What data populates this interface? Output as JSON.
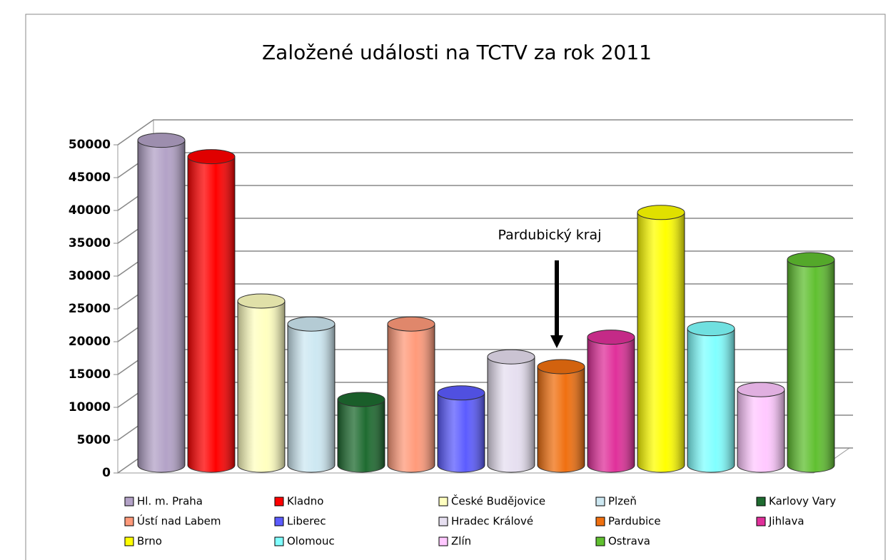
{
  "chart_data": {
    "type": "cylinder",
    "title": "Založené události na TCTV za rok 2011",
    "categories": [
      "Hl. m. Praha",
      "Kladno",
      "České Budějovice",
      "Plzeň",
      "Karlovy Vary",
      "Ústí nad Labem",
      "Liberec",
      "Hradec Králové",
      "Pardubice",
      "Jihlava",
      "Brno",
      "Olomouc",
      "Zlín",
      "Ostrava"
    ],
    "values": [
      49500,
      47000,
      25000,
      21500,
      10000,
      21500,
      11000,
      16500,
      15000,
      19500,
      38500,
      20800,
      11500,
      31300
    ],
    "colors": [
      "#b3a2c7",
      "#ff0000",
      "#ffffc0",
      "#cde8f2",
      "#1e6b30",
      "#ff9a7a",
      "#5c5cff",
      "#e6dff0",
      "#f07010",
      "#e0309a",
      "#ffff00",
      "#80ffff",
      "#ffc8ff",
      "#60c030"
    ],
    "ylim": [
      0,
      50000
    ],
    "yticks": [
      0,
      5000,
      10000,
      15000,
      20000,
      25000,
      30000,
      35000,
      40000,
      45000,
      50000
    ],
    "grid": true,
    "annotation": "Pardubický kraj"
  }
}
